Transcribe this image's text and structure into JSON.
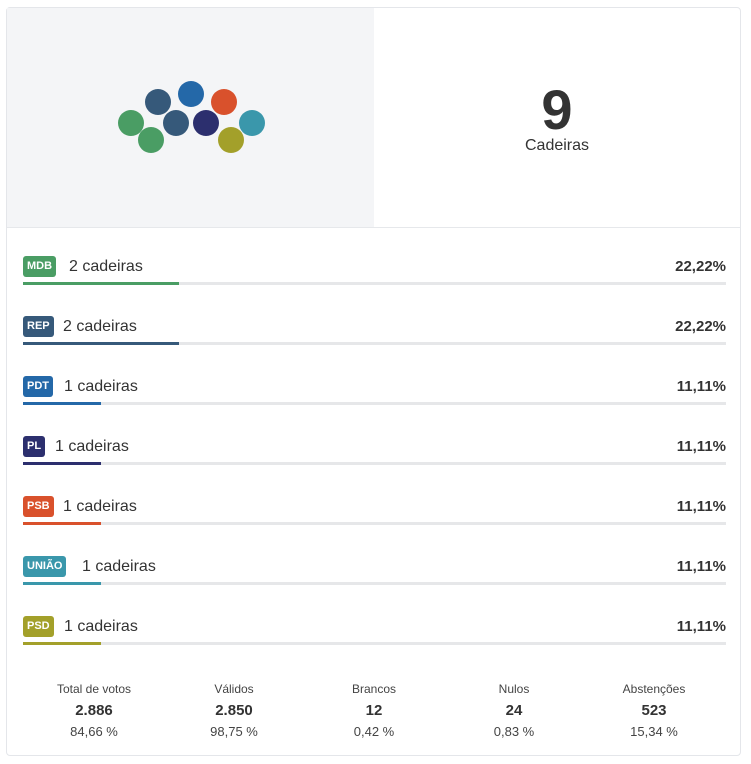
{
  "summary": {
    "total_seats": "9",
    "seats_label": "Cadeiras"
  },
  "chart_data": {
    "type": "bar",
    "categories": [
      "MDB",
      "REP",
      "PDT",
      "PL",
      "PSB",
      "UNIÃO",
      "PSD"
    ],
    "values": [
      22.22,
      22.22,
      11.11,
      11.11,
      11.11,
      11.11,
      11.11
    ],
    "seats": [
      2,
      2,
      1,
      1,
      1,
      1,
      1
    ],
    "xlim": [
      0,
      100
    ]
  },
  "parties": [
    {
      "abbr": "MDB",
      "seats_text": "2 cadeiras",
      "pct_text": "22,22%",
      "pct": 22.22,
      "color": "#4a9d64"
    },
    {
      "abbr": "REP",
      "seats_text": "2 cadeiras",
      "pct_text": "22,22%",
      "pct": 22.22,
      "color": "#36597a"
    },
    {
      "abbr": "PDT",
      "seats_text": "1 cadeiras",
      "pct_text": "11,11%",
      "pct": 11.11,
      "color": "#2468a8"
    },
    {
      "abbr": "PL",
      "seats_text": "1 cadeiras",
      "pct_text": "11,11%",
      "pct": 11.11,
      "color": "#2c2f6e"
    },
    {
      "abbr": "PSB",
      "seats_text": "1 cadeiras",
      "pct_text": "11,11%",
      "pct": 11.11,
      "color": "#d9512c"
    },
    {
      "abbr": "UNIÃO",
      "seats_text": "1 cadeiras",
      "pct_text": "11,11%",
      "pct": 11.11,
      "color": "#3a97ab"
    },
    {
      "abbr": "PSD",
      "seats_text": "1 cadeiras",
      "pct_text": "11,11%",
      "pct": 11.11,
      "color": "#a3a02a"
    }
  ],
  "stats": [
    {
      "label": "Total de votos",
      "value": "2.886",
      "pct": "84,66 %"
    },
    {
      "label": "Válidos",
      "value": "2.850",
      "pct": "98,75 %"
    },
    {
      "label": "Brancos",
      "value": "12",
      "pct": "0,42 %"
    },
    {
      "label": "Nulos",
      "value": "24",
      "pct": "0,83 %"
    },
    {
      "label": "Abstenções",
      "value": "523",
      "pct": "15,34 %"
    }
  ]
}
